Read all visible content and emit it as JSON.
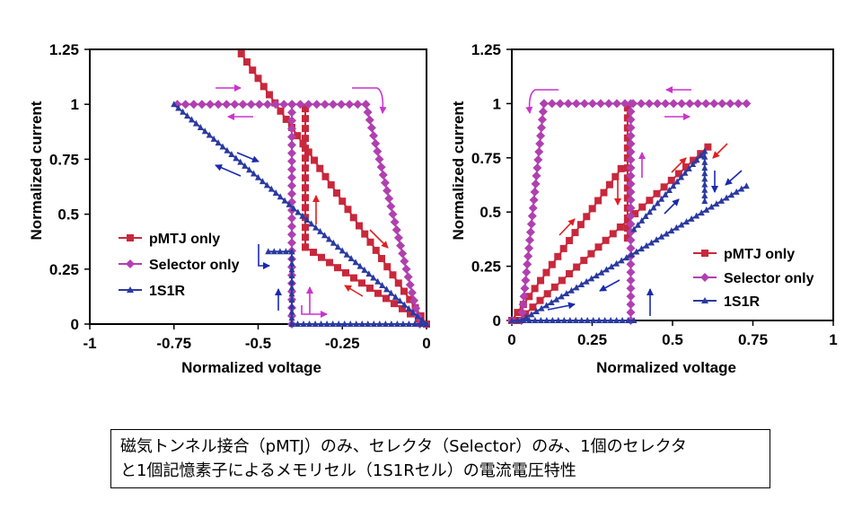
{
  "colors": {
    "pmtj": "#c8283c",
    "selector": "#b040b0",
    "s1r": "#2a3aa0",
    "arrow_red": "#e02020",
    "arrow_pink": "#cc33cc",
    "arrow_blue": "#1a2ab0"
  },
  "chart_data": [
    {
      "type": "line",
      "xlabel": "Normalized voltage",
      "ylabel": "Normalized current",
      "xlim": [
        -1,
        0
      ],
      "ylim": [
        0,
        1.25
      ],
      "xticks": [
        "-1",
        "-0.75",
        "-0.5",
        "-0.25",
        "0"
      ],
      "yticks": [
        "0",
        "0.25",
        "0.5",
        "0.75",
        "1",
        "1.25"
      ],
      "legend": [
        "pMTJ only",
        "Selector only",
        "1S1R"
      ],
      "legend_position": "lower-left",
      "series": [
        {
          "name": "pMTJ only",
          "segments": [
            {
              "x": [
                0,
                -0.55
              ],
              "y": [
                0,
                1.23
              ]
            },
            {
              "x": [
                0,
                -0.36
              ],
              "y": [
                0,
                0.35
              ]
            },
            {
              "x": [
                -0.36,
                -0.36
              ],
              "y": [
                0.35,
                0.98
              ]
            }
          ]
        },
        {
          "name": "Selector only",
          "segments": [
            {
              "x": [
                -0.74,
                -0.18
              ],
              "y": [
                1.0,
                1.0
              ]
            },
            {
              "x": [
                -0.18,
                -0.02
              ],
              "y": [
                1.0,
                0
              ]
            },
            {
              "x": [
                -0.4,
                -0.4
              ],
              "y": [
                0,
                1.0
              ]
            }
          ]
        },
        {
          "name": "1S1R",
          "segments": [
            {
              "x": [
                -0.75,
                0
              ],
              "y": [
                1.0,
                0
              ]
            },
            {
              "x": [
                -0.47,
                -0.4
              ],
              "y": [
                0.33,
                0.33
              ]
            },
            {
              "x": [
                -0.4,
                -0.4
              ],
              "y": [
                0.33,
                0
              ]
            },
            {
              "x": [
                -0.4,
                0
              ],
              "y": [
                0,
                0
              ]
            }
          ]
        }
      ]
    },
    {
      "type": "line",
      "xlabel": "Normalized voltage",
      "ylabel": "Normalized current",
      "xlim": [
        0,
        1
      ],
      "ylim": [
        0,
        1.25
      ],
      "xticks": [
        "0",
        "0.25",
        "0.5",
        "0.75",
        "1"
      ],
      "yticks": [
        "0",
        "0.25",
        "0.5",
        "0.75",
        "1",
        "1.25"
      ],
      "legend": [
        "pMTJ only",
        "Selector only",
        "1S1R"
      ],
      "legend_position": "lower-right",
      "series": [
        {
          "name": "pMTJ only",
          "segments": [
            {
              "x": [
                0,
                0.34
              ],
              "y": [
                0,
                0.7
              ]
            },
            {
              "x": [
                0.02,
                0.61
              ],
              "y": [
                0,
                0.8
              ]
            },
            {
              "x": [
                0.36,
                0.36
              ],
              "y": [
                0.38,
                0.98
              ]
            }
          ]
        },
        {
          "name": "Selector only",
          "segments": [
            {
              "x": [
                0,
                0.03
              ],
              "y": [
                0,
                0
              ]
            },
            {
              "x": [
                0.03,
                0.1
              ],
              "y": [
                0,
                1.0
              ]
            },
            {
              "x": [
                0.1,
                0.73
              ],
              "y": [
                1.0,
                1.0
              ]
            },
            {
              "x": [
                0.37,
                0.37
              ],
              "y": [
                0,
                1.0
              ]
            }
          ]
        },
        {
          "name": "1S1R",
          "segments": [
            {
              "x": [
                0,
                0.38
              ],
              "y": [
                0,
                0
              ]
            },
            {
              "x": [
                0.03,
                0.73
              ],
              "y": [
                0,
                0.62
              ]
            },
            {
              "x": [
                0.38,
                0.6
              ],
              "y": [
                0.42,
                0.78
              ]
            },
            {
              "x": [
                0.6,
                0.6
              ],
              "y": [
                0.78,
                0.55
              ]
            }
          ]
        }
      ]
    }
  ],
  "caption": {
    "line1": "磁気トンネル接合（pMTJ）のみ、セレクタ（Selector）のみ、1個のセレクタ",
    "line2": "と1個記憶素子によるメモリセル（1S1Rセル）の電流電圧特性"
  }
}
